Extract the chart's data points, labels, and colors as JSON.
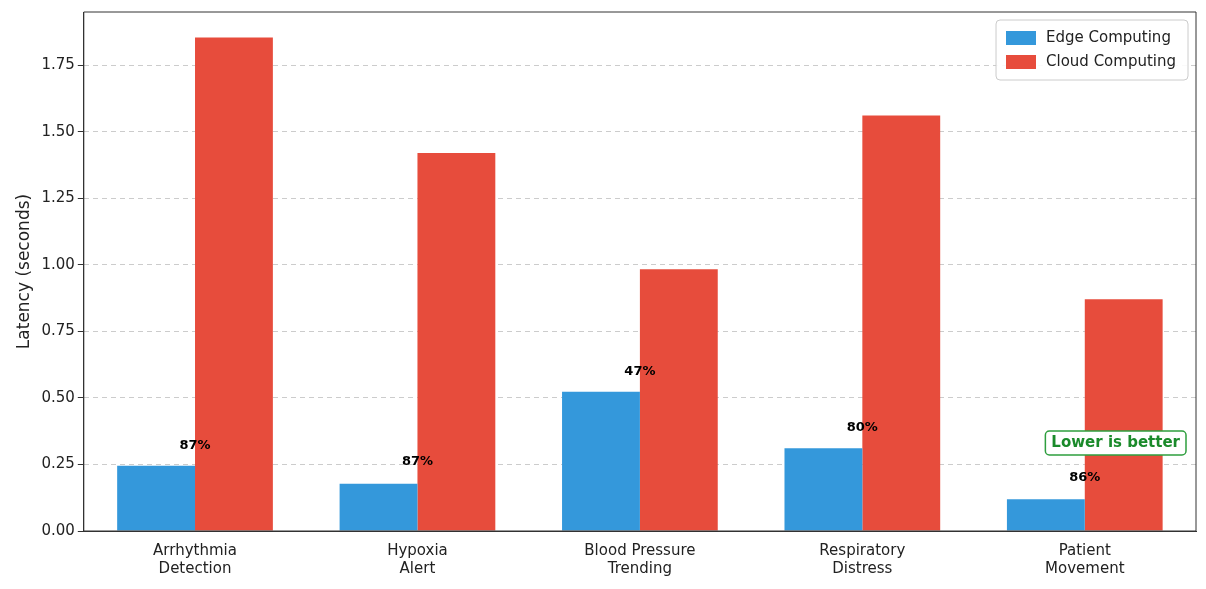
{
  "chart_data": {
    "type": "bar",
    "ylabel": "Latency (seconds)",
    "categories": [
      "Arrhythmia\nDetection",
      "Hypoxia\nAlert",
      "Blood Pressure\nTrending",
      "Respiratory\nDistress",
      "Patient\nMovement"
    ],
    "series": [
      {
        "name": "Edge Computing",
        "color": "#3498db",
        "values": [
          0.245,
          0.178,
          0.523,
          0.311,
          0.119
        ]
      },
      {
        "name": "Cloud Computing",
        "color": "#e74c3c",
        "values": [
          1.854,
          1.42,
          0.983,
          1.561,
          0.871
        ]
      }
    ],
    "ylim": [
      0,
      1.95
    ],
    "yticks": [
      {
        "value": 0,
        "label": "0.00"
      },
      {
        "value": 0.25,
        "label": "0.25"
      },
      {
        "value": 0.5,
        "label": "0.50"
      },
      {
        "value": 0.75,
        "label": "0.75"
      },
      {
        "value": 1,
        "label": "1.00"
      },
      {
        "value": 1.25,
        "label": "1.25"
      },
      {
        "value": 1.5,
        "label": "1.50"
      },
      {
        "value": 1.75,
        "label": "1.75"
      }
    ],
    "grid": "y",
    "legend": "top right",
    "annotations": [
      {
        "text": "87%",
        "x": "Arrhythmia\nDetection",
        "y": 0.32
      },
      {
        "text": "87%",
        "x": "Hypoxia\nAlert",
        "y": 0.26
      },
      {
        "text": "47%",
        "x": "Blood Pressure\nTrending",
        "y": 0.6
      },
      {
        "text": "80%",
        "x": "Respiratory\nDistress",
        "y": 0.39
      },
      {
        "text": "86%",
        "x": "Patient\nMovement",
        "y": 0.2
      },
      "Lower is better"
    ]
  }
}
